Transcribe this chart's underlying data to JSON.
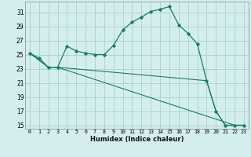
{
  "xlabel": "Humidex (Indice chaleur)",
  "ylabel": "",
  "background_color": "#d4eeee",
  "grid_color": "#aed4d4",
  "line_color": "#1a7a6e",
  "xlim": [
    -0.5,
    23.5
  ],
  "ylim": [
    14.5,
    32.5
  ],
  "yticks": [
    15,
    17,
    19,
    21,
    23,
    25,
    27,
    29,
    31
  ],
  "xticks": [
    0,
    1,
    2,
    3,
    4,
    5,
    6,
    7,
    8,
    9,
    10,
    11,
    12,
    13,
    14,
    15,
    16,
    17,
    18,
    19,
    20,
    21,
    22,
    23
  ],
  "series1_x": [
    0,
    1,
    2,
    3,
    4,
    5,
    6,
    7,
    8,
    9,
    10,
    11,
    12,
    13,
    14,
    15,
    16,
    17,
    18,
    19,
    20,
    21,
    22,
    23
  ],
  "series1_y": [
    25.2,
    24.5,
    23.2,
    23.2,
    26.2,
    25.5,
    25.2,
    25.0,
    25.0,
    26.3,
    28.5,
    29.6,
    30.3,
    31.1,
    31.4,
    31.8,
    29.2,
    28.0,
    26.5,
    21.3,
    17.0,
    15.0,
    15.0,
    15.0
  ],
  "series2_x": [
    0,
    2,
    3,
    22,
    23
  ],
  "series2_y": [
    25.2,
    23.2,
    23.2,
    15.0,
    15.0
  ],
  "series3_x": [
    0,
    2,
    3,
    19,
    20,
    21,
    22,
    23
  ],
  "series3_y": [
    25.2,
    23.2,
    23.2,
    21.3,
    17.0,
    15.0,
    15.0,
    15.0
  ]
}
